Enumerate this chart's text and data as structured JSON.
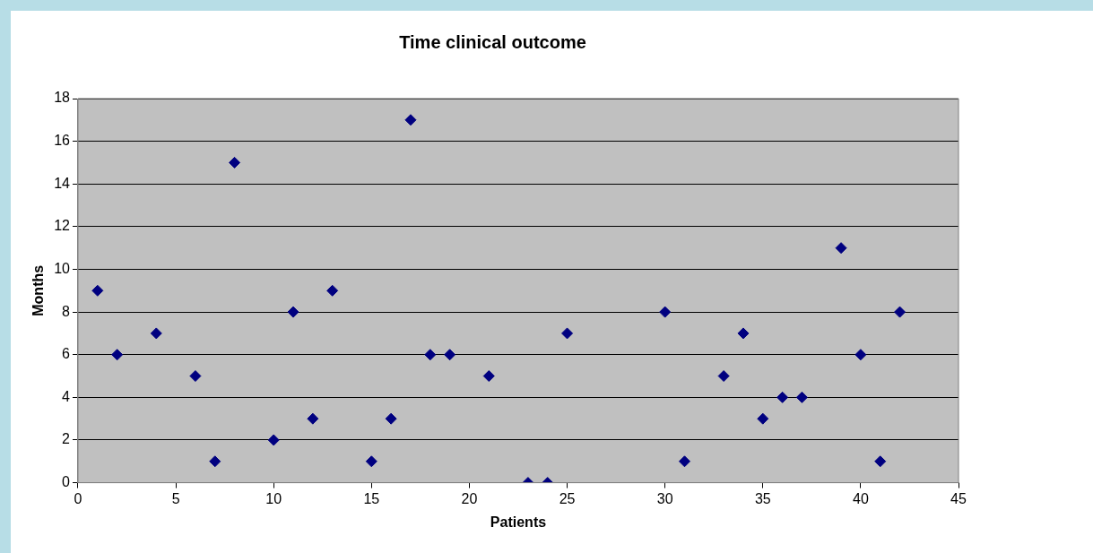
{
  "chart_data": {
    "type": "scatter",
    "title": "Time clinical outcome",
    "xlabel": "Patients",
    "ylabel": "Months",
    "x": [
      1,
      2,
      4,
      6,
      7,
      8,
      10,
      11,
      12,
      13,
      15,
      16,
      17,
      18,
      19,
      21,
      23,
      24,
      25,
      30,
      31,
      33,
      34,
      35,
      36,
      37,
      39,
      40,
      41,
      42
    ],
    "series": [
      {
        "color": "#000080",
        "values": [
          9,
          6,
          7,
          5,
          1,
          15,
          2,
          8,
          3,
          9,
          1,
          3,
          17,
          6,
          6,
          5,
          0,
          0,
          7,
          8,
          1,
          5,
          7,
          3,
          4,
          4,
          11,
          6,
          1,
          8
        ]
      }
    ],
    "xlim": [
      0,
      45
    ],
    "xticks": [
      0,
      5,
      10,
      15,
      20,
      25,
      30,
      35,
      40,
      45
    ],
    "ylim": [
      0,
      18
    ],
    "yticks": [
      0,
      2,
      4,
      6,
      8,
      10,
      12,
      14,
      16,
      18
    ],
    "grid": "y",
    "legend": false,
    "marker": "diamond"
  }
}
